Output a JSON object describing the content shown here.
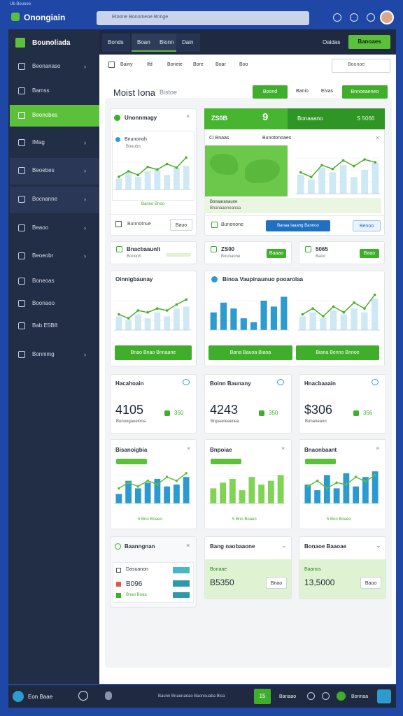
{
  "window": {
    "caption": "Ub Bouooo",
    "title": "Onongiain",
    "search": "Etoone Bonomeoe Bnnge"
  },
  "sidebar": {
    "title": "Bounoliada",
    "items": [
      "Beonanaso",
      "Bamss",
      "Beonobes",
      "IMag",
      "Beoebes",
      "Bocnanne",
      "Beaoo",
      "Beoeobr",
      "Boneoas",
      "Boonaoo",
      "Bab E5B8",
      "Bonnimg"
    ],
    "active": 2
  },
  "topbar": {
    "tabs": [
      "Bonds",
      "Boan",
      "Bionn",
      "Dain"
    ],
    "link": "Oaidas",
    "button": "Banoaes"
  },
  "toolbar": {
    "items": [
      "Bainy",
      "Ifd",
      "Boneie",
      "Bore",
      "Boar",
      "Boo"
    ],
    "search": "Boonoe"
  },
  "page": {
    "title": "Moist Iona",
    "subtitle": "Bistoe",
    "buttons": [
      "Boond",
      "Banio",
      "Eivas",
      "Bnnoeaeneo"
    ]
  },
  "card_a": {
    "title": "Unonnmagy",
    "subtitle": "Bnunonoh",
    "caption": "Bneubn",
    "legend": "Banoo Bnoo",
    "footer": "Bunnotnue",
    "button": "Bauo"
  },
  "card_b": {
    "header": [
      "ZS0B",
      "9",
      "Bonaaano",
      "S 5066"
    ],
    "map_title": "Ci Bnaas",
    "chart_title": "Bunotonoaes",
    "legend": "Bonaaranaune",
    "caption": "Bnanaaeneanaa",
    "footer": "Bunonone",
    "button": "Banaa Iaaang Bannoo",
    "button2": "Benoo"
  },
  "small_cards": [
    {
      "title": "Bnacbaaunlt",
      "sub": "Bononh"
    },
    {
      "title": "ZS00",
      "sub": "Bounaone",
      "button": "Baaao"
    },
    {
      "title": "5065",
      "sub": "Baoo",
      "button": "Baao"
    }
  ],
  "card_c": {
    "title": "Oinnigbaunay",
    "button": "Bnao Bnao Bnnaane"
  },
  "card_d": {
    "title": "Binoa Vaupinaunuo pooarolaa",
    "buttons": [
      "Bana Bauoa Biaoa",
      "Biana Benno Bnnoe"
    ]
  },
  "stats": [
    {
      "title": "Hacahoain",
      "value": "4105",
      "delta": "350",
      "sub": "Bunoogaueiona"
    },
    {
      "title": "Boinn Baunany",
      "value": "4243",
      "delta": "350",
      "sub": "Bnpaaneaenea"
    },
    {
      "title": "Hnacbaaain",
      "value": "$306",
      "delta": "356",
      "sub": "Bonaneaon"
    }
  ],
  "chart_cards": [
    {
      "title": "Bisanoigbia",
      "footer": "5 Bno Boaeo"
    },
    {
      "title": "Bnpoiae",
      "footer": "5 Bno Boaeo"
    },
    {
      "title": "Bnaonbaant",
      "footer": "5 Bno Boaeo"
    }
  ],
  "list_card": {
    "title": "Baanngnan",
    "rows": [
      "Dasuanon",
      "B096"
    ],
    "link": "Bnao Boaa"
  },
  "amount_cards": [
    {
      "title": "Bang naobaaone",
      "label": "Bonaae",
      "value": "B5350",
      "button": "Bnao"
    },
    {
      "title": "Bonaoe Baaoae",
      "label": "Baanos",
      "value": "13,5000",
      "button": "Baoo"
    }
  ],
  "footer": {
    "user": "Eon Baae",
    "status": "Baunn Bnaunanao Baonouaba Bisa",
    "badge": "15",
    "link": "Banaao",
    "link2": "Bonnaa"
  },
  "charts": [
    {
      "ylim": [
        0,
        100
      ],
      "bar_color": "#cfe8f5",
      "line_color": "#4caf2a",
      "bars": [
        30,
        45,
        35,
        50,
        55,
        40,
        60,
        65
      ],
      "line": [
        35,
        50,
        40,
        62,
        55,
        70,
        60,
        88
      ]
    },
    {
      "ylim": [
        0,
        100
      ],
      "bar_color": "#cfe8f5",
      "line_color": "#4caf2a",
      "bars": [
        40,
        30,
        55,
        45,
        60,
        35,
        50,
        65
      ],
      "line": [
        45,
        35,
        60,
        52,
        70,
        58,
        72,
        66
      ]
    },
    {
      "ylim": [
        0,
        100
      ],
      "bar_color": "#cfe8f5",
      "line_color": "#4caf2a",
      "bars": [
        35,
        25,
        40,
        30,
        45,
        35,
        55,
        60
      ],
      "line": [
        40,
        30,
        50,
        45,
        55,
        50,
        65,
        78
      ]
    },
    {
      "ylim": [
        0,
        100
      ],
      "bar_color": "#2b9bd0",
      "bars": [
        45,
        70,
        55,
        30,
        20,
        75,
        60,
        85
      ]
    },
    {
      "ylim": [
        0,
        100
      ],
      "bar_color": "#cfe8f5",
      "line_color": "#4caf2a",
      "bars": [
        35,
        45,
        30,
        50,
        40,
        55,
        45,
        80
      ],
      "line": [
        40,
        55,
        35,
        60,
        45,
        70,
        55,
        90
      ]
    },
    {
      "ylim": [
        0,
        100
      ],
      "bar_color": "#2a9ad0",
      "line_color": "#5cc13a",
      "bars": [
        25,
        60,
        40,
        55,
        65,
        45,
        50,
        70
      ],
      "line": [
        40,
        55,
        45,
        60,
        50,
        70,
        60,
        80
      ]
    },
    {
      "ylim": [
        0,
        100
      ],
      "bar_color": "#7fd454",
      "bars": [
        40,
        55,
        65,
        35,
        70,
        50,
        60,
        75
      ]
    },
    {
      "ylim": [
        0,
        100
      ],
      "bar_color": "#2a9ad0",
      "line_color": "#5cc13a",
      "bars": [
        50,
        35,
        75,
        40,
        80,
        45,
        70,
        85
      ],
      "line": [
        45,
        60,
        40,
        55,
        50,
        70,
        58,
        75
      ]
    }
  ]
}
